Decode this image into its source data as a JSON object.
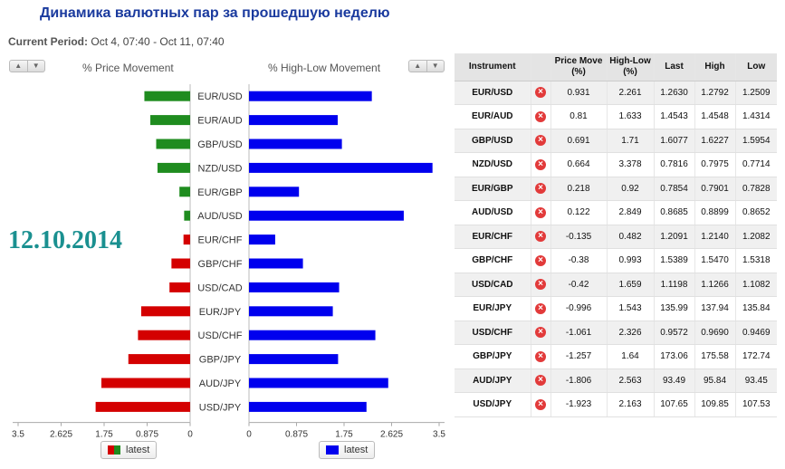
{
  "page": {
    "title": "Динамика валютных пар за прошедшую неделю",
    "period_label": "Current Period:",
    "period_value": "Oct 4, 07:40 - Oct 11, 07:40",
    "date_stamp": "12.10.2014"
  },
  "sort_controls": {
    "up": "▲",
    "down": "▼"
  },
  "panels": {
    "price_title": "% Price Movement",
    "highlow_title": "% High-Low Movement"
  },
  "colors": {
    "positive": "#1f8c1f",
    "negative": "#d40000",
    "highlow": "#0000ee",
    "remove_icon": "#e23a3a"
  },
  "chart_data": {
    "type": "bar",
    "categories": [
      "EUR/USD",
      "EUR/AUD",
      "GBP/USD",
      "NZD/USD",
      "EUR/GBP",
      "AUD/USD",
      "EUR/CHF",
      "GBP/CHF",
      "USD/CAD",
      "EUR/JPY",
      "USD/CHF",
      "GBP/JPY",
      "AUD/JPY",
      "USD/JPY"
    ],
    "series": [
      {
        "name": "latest",
        "panel": "price",
        "values": [
          0.931,
          0.81,
          0.691,
          0.664,
          0.218,
          0.122,
          -0.135,
          -0.38,
          -0.42,
          -0.996,
          -1.061,
          -1.257,
          -1.806,
          -1.923
        ]
      },
      {
        "name": "latest",
        "panel": "highlow",
        "values": [
          2.261,
          1.633,
          1.71,
          3.378,
          0.92,
          2.849,
          0.482,
          0.993,
          1.659,
          1.543,
          2.326,
          1.64,
          2.563,
          2.163
        ]
      }
    ],
    "price_axis": {
      "ticks": [
        "3.5",
        "2.625",
        "1.75",
        "0.875",
        "0"
      ],
      "range": [
        0,
        3.5
      ],
      "direction": "right-to-left"
    },
    "highlow_axis": {
      "ticks": [
        "0",
        "0.875",
        "1.75",
        "2.625",
        "3.5"
      ],
      "range": [
        0,
        3.5
      ]
    },
    "legend": {
      "price": "latest",
      "highlow": "latest",
      "placement": "bottom"
    }
  },
  "table": {
    "columns": [
      "Instrument",
      "",
      "Price Move\n(%)",
      "High-Low\n(%)",
      "Last",
      "High",
      "Low"
    ],
    "remove_glyph": "×",
    "rows": [
      {
        "instrument": "EUR/USD",
        "price_move": "0.931",
        "high_low": "2.261",
        "last": "1.2630",
        "high": "1.2792",
        "low": "1.2509"
      },
      {
        "instrument": "EUR/AUD",
        "price_move": "0.81",
        "high_low": "1.633",
        "last": "1.4543",
        "high": "1.4548",
        "low": "1.4314"
      },
      {
        "instrument": "GBP/USD",
        "price_move": "0.691",
        "high_low": "1.71",
        "last": "1.6077",
        "high": "1.6227",
        "low": "1.5954"
      },
      {
        "instrument": "NZD/USD",
        "price_move": "0.664",
        "high_low": "3.378",
        "last": "0.7816",
        "high": "0.7975",
        "low": "0.7714"
      },
      {
        "instrument": "EUR/GBP",
        "price_move": "0.218",
        "high_low": "0.92",
        "last": "0.7854",
        "high": "0.7901",
        "low": "0.7828"
      },
      {
        "instrument": "AUD/USD",
        "price_move": "0.122",
        "high_low": "2.849",
        "last": "0.8685",
        "high": "0.8899",
        "low": "0.8652"
      },
      {
        "instrument": "EUR/CHF",
        "price_move": "-0.135",
        "high_low": "0.482",
        "last": "1.2091",
        "high": "1.2140",
        "low": "1.2082"
      },
      {
        "instrument": "GBP/CHF",
        "price_move": "-0.38",
        "high_low": "0.993",
        "last": "1.5389",
        "high": "1.5470",
        "low": "1.5318"
      },
      {
        "instrument": "USD/CAD",
        "price_move": "-0.42",
        "high_low": "1.659",
        "last": "1.1198",
        "high": "1.1266",
        "low": "1.1082"
      },
      {
        "instrument": "EUR/JPY",
        "price_move": "-0.996",
        "high_low": "1.543",
        "last": "135.99",
        "high": "137.94",
        "low": "135.84"
      },
      {
        "instrument": "USD/CHF",
        "price_move": "-1.061",
        "high_low": "2.326",
        "last": "0.9572",
        "high": "0.9690",
        "low": "0.9469"
      },
      {
        "instrument": "GBP/JPY",
        "price_move": "-1.257",
        "high_low": "1.64",
        "last": "173.06",
        "high": "175.58",
        "low": "172.74"
      },
      {
        "instrument": "AUD/JPY",
        "price_move": "-1.806",
        "high_low": "2.563",
        "last": "93.49",
        "high": "95.84",
        "low": "93.45"
      },
      {
        "instrument": "USD/JPY",
        "price_move": "-1.923",
        "high_low": "2.163",
        "last": "107.65",
        "high": "109.85",
        "low": "107.53"
      }
    ]
  }
}
